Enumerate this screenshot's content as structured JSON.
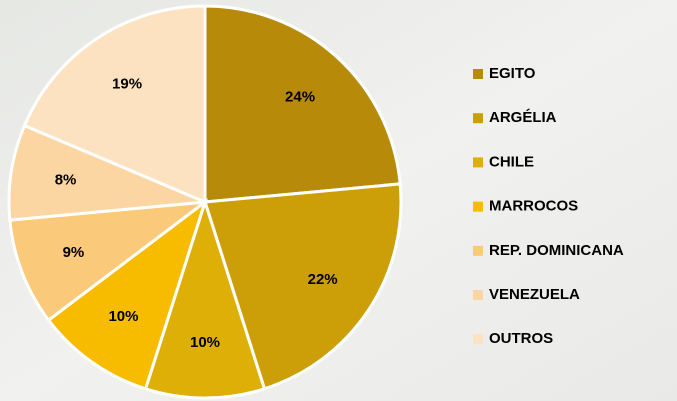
{
  "chart_data": {
    "type": "pie",
    "categories": [
      "EGITO",
      "ARGÉLIA",
      "CHILE",
      "MARROCOS",
      "REP. DOMINICANA",
      "VENEZUELA",
      "OUTROS"
    ],
    "values": [
      24,
      22,
      10,
      10,
      9,
      8,
      19
    ],
    "value_labels": [
      "24%",
      "22%",
      "10%",
      "10%",
      "9%",
      "8%",
      "19%"
    ],
    "colors": [
      "#b88a0a",
      "#cc9e08",
      "#deaf06",
      "#f7bc00",
      "#fbc97a",
      "#fcd6a2",
      "#fde2c2"
    ],
    "legend": "right"
  }
}
